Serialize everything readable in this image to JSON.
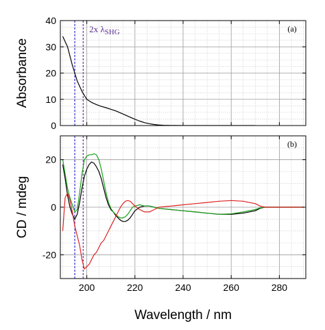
{
  "chart_data": [
    {
      "type": "line",
      "panel_label": "(a)",
      "ylabel": "Absorbance",
      "xlabel": "",
      "xlim": [
        189,
        291
      ],
      "ylim": [
        0,
        40
      ],
      "yticks": [
        0,
        10,
        20,
        30,
        40
      ],
      "xticks": [
        200,
        220,
        240,
        260,
        280
      ],
      "grid": true,
      "annotation": {
        "text_main": "2x λ",
        "text_sub": "SHG",
        "color": "#5b2c91"
      },
      "vlines": [
        {
          "x": 195,
          "color": "#3b3bd8"
        },
        {
          "x": 198.5,
          "color": "#7a3ab0"
        }
      ],
      "series": [
        {
          "color": "#000000",
          "x": [
            190,
            192,
            194,
            196,
            198,
            200,
            202,
            204,
            206,
            208,
            210,
            212,
            214,
            216,
            218,
            220,
            222,
            224,
            226,
            228,
            230,
            232,
            235,
            240,
            250,
            260,
            270
          ],
          "values": [
            34,
            30,
            23,
            17,
            13,
            10,
            8.8,
            8,
            7.3,
            6.8,
            6.2,
            5.6,
            4.8,
            4,
            3.2,
            2.4,
            1.7,
            1.1,
            0.7,
            0.4,
            0.2,
            0.1,
            0.05,
            0,
            0,
            0,
            0
          ]
        }
      ]
    },
    {
      "type": "line",
      "panel_label": "(b)",
      "ylabel": "CD / mdeg",
      "xlabel": "Wavelength / nm",
      "xlim": [
        189,
        291
      ],
      "ylim": [
        -30,
        30
      ],
      "yticks": [
        -20,
        0,
        20
      ],
      "xticks": [
        200,
        220,
        240,
        260,
        280
      ],
      "grid": true,
      "vlines": [
        {
          "x": 195,
          "color": "#3b3bd8"
        },
        {
          "x": 198.5,
          "color": "#7a3ab0"
        }
      ],
      "series": [
        {
          "color": "#000000",
          "x": [
            190,
            191,
            192,
            193,
            194,
            195,
            196,
            197,
            198,
            199,
            200,
            201,
            202,
            203,
            204,
            205,
            206,
            207,
            208,
            209,
            210,
            211,
            212,
            213,
            214,
            215,
            216,
            217,
            218,
            219,
            220,
            222,
            224,
            226,
            228,
            230,
            235,
            240,
            245,
            250,
            255,
            260,
            265,
            270,
            272,
            274,
            280,
            290
          ],
          "values": [
            18,
            12,
            5,
            0,
            -3,
            -5,
            -3,
            2,
            8,
            13,
            16,
            18,
            19,
            18.5,
            17,
            15,
            12,
            8,
            4,
            1,
            -1,
            -2,
            -3.5,
            -4.5,
            -5.5,
            -6,
            -6,
            -5.5,
            -4.5,
            -3,
            -1.5,
            0,
            0.5,
            0.5,
            0,
            -0.5,
            -1,
            -1.5,
            -2,
            -2.5,
            -3,
            -3,
            -2.5,
            -1.5,
            -0.5,
            0,
            0,
            0
          ]
        },
        {
          "color": "#1aa01a",
          "x": [
            190,
            191,
            192,
            193,
            194,
            195,
            196,
            197,
            198,
            199,
            200,
            201,
            202,
            203,
            204,
            205,
            206,
            207,
            208,
            209,
            210,
            211,
            212,
            213,
            214,
            215,
            216,
            217,
            218,
            219,
            220,
            222,
            224,
            226,
            228,
            230,
            235,
            240,
            245,
            250,
            255,
            260,
            265,
            270,
            272,
            274,
            280,
            290
          ],
          "values": [
            20,
            14,
            8,
            4,
            1,
            -2,
            -1,
            6,
            14,
            20,
            21.5,
            22,
            22,
            22.5,
            22,
            20,
            16,
            11,
            6,
            2,
            -0.5,
            -2,
            -3,
            -4,
            -4.5,
            -4.5,
            -4,
            -3,
            -1.5,
            0,
            0.5,
            1,
            0.5,
            0.5,
            0,
            -0.5,
            -1,
            -1.5,
            -2,
            -2.5,
            -3,
            -2.8,
            -2,
            -1,
            -0.3,
            0,
            0,
            0
          ]
        },
        {
          "color": "#dd2222",
          "x": [
            190,
            191,
            192,
            193,
            194,
            195,
            196,
            197,
            198,
            199,
            200,
            201,
            202,
            203,
            204,
            205,
            206,
            207,
            208,
            209,
            210,
            211,
            212,
            213,
            214,
            215,
            216,
            217,
            218,
            219,
            220,
            222,
            224,
            226,
            228,
            230,
            235,
            240,
            245,
            250,
            255,
            260,
            265,
            270,
            272,
            274,
            280,
            290
          ],
          "values": [
            -10,
            4,
            6,
            3,
            -2,
            -8,
            -12,
            -16,
            -22,
            -26,
            -25,
            -24,
            -22,
            -20,
            -19,
            -17,
            -15,
            -14,
            -12,
            -10,
            -8,
            -6,
            -4,
            -2,
            0,
            1.5,
            2.5,
            2.8,
            2.5,
            1.5,
            0.5,
            -1,
            -2,
            -2,
            -1,
            0,
            0.5,
            1,
            1.5,
            2,
            2.5,
            2.8,
            2.5,
            1.5,
            0.5,
            0,
            0,
            0
          ]
        }
      ]
    }
  ]
}
